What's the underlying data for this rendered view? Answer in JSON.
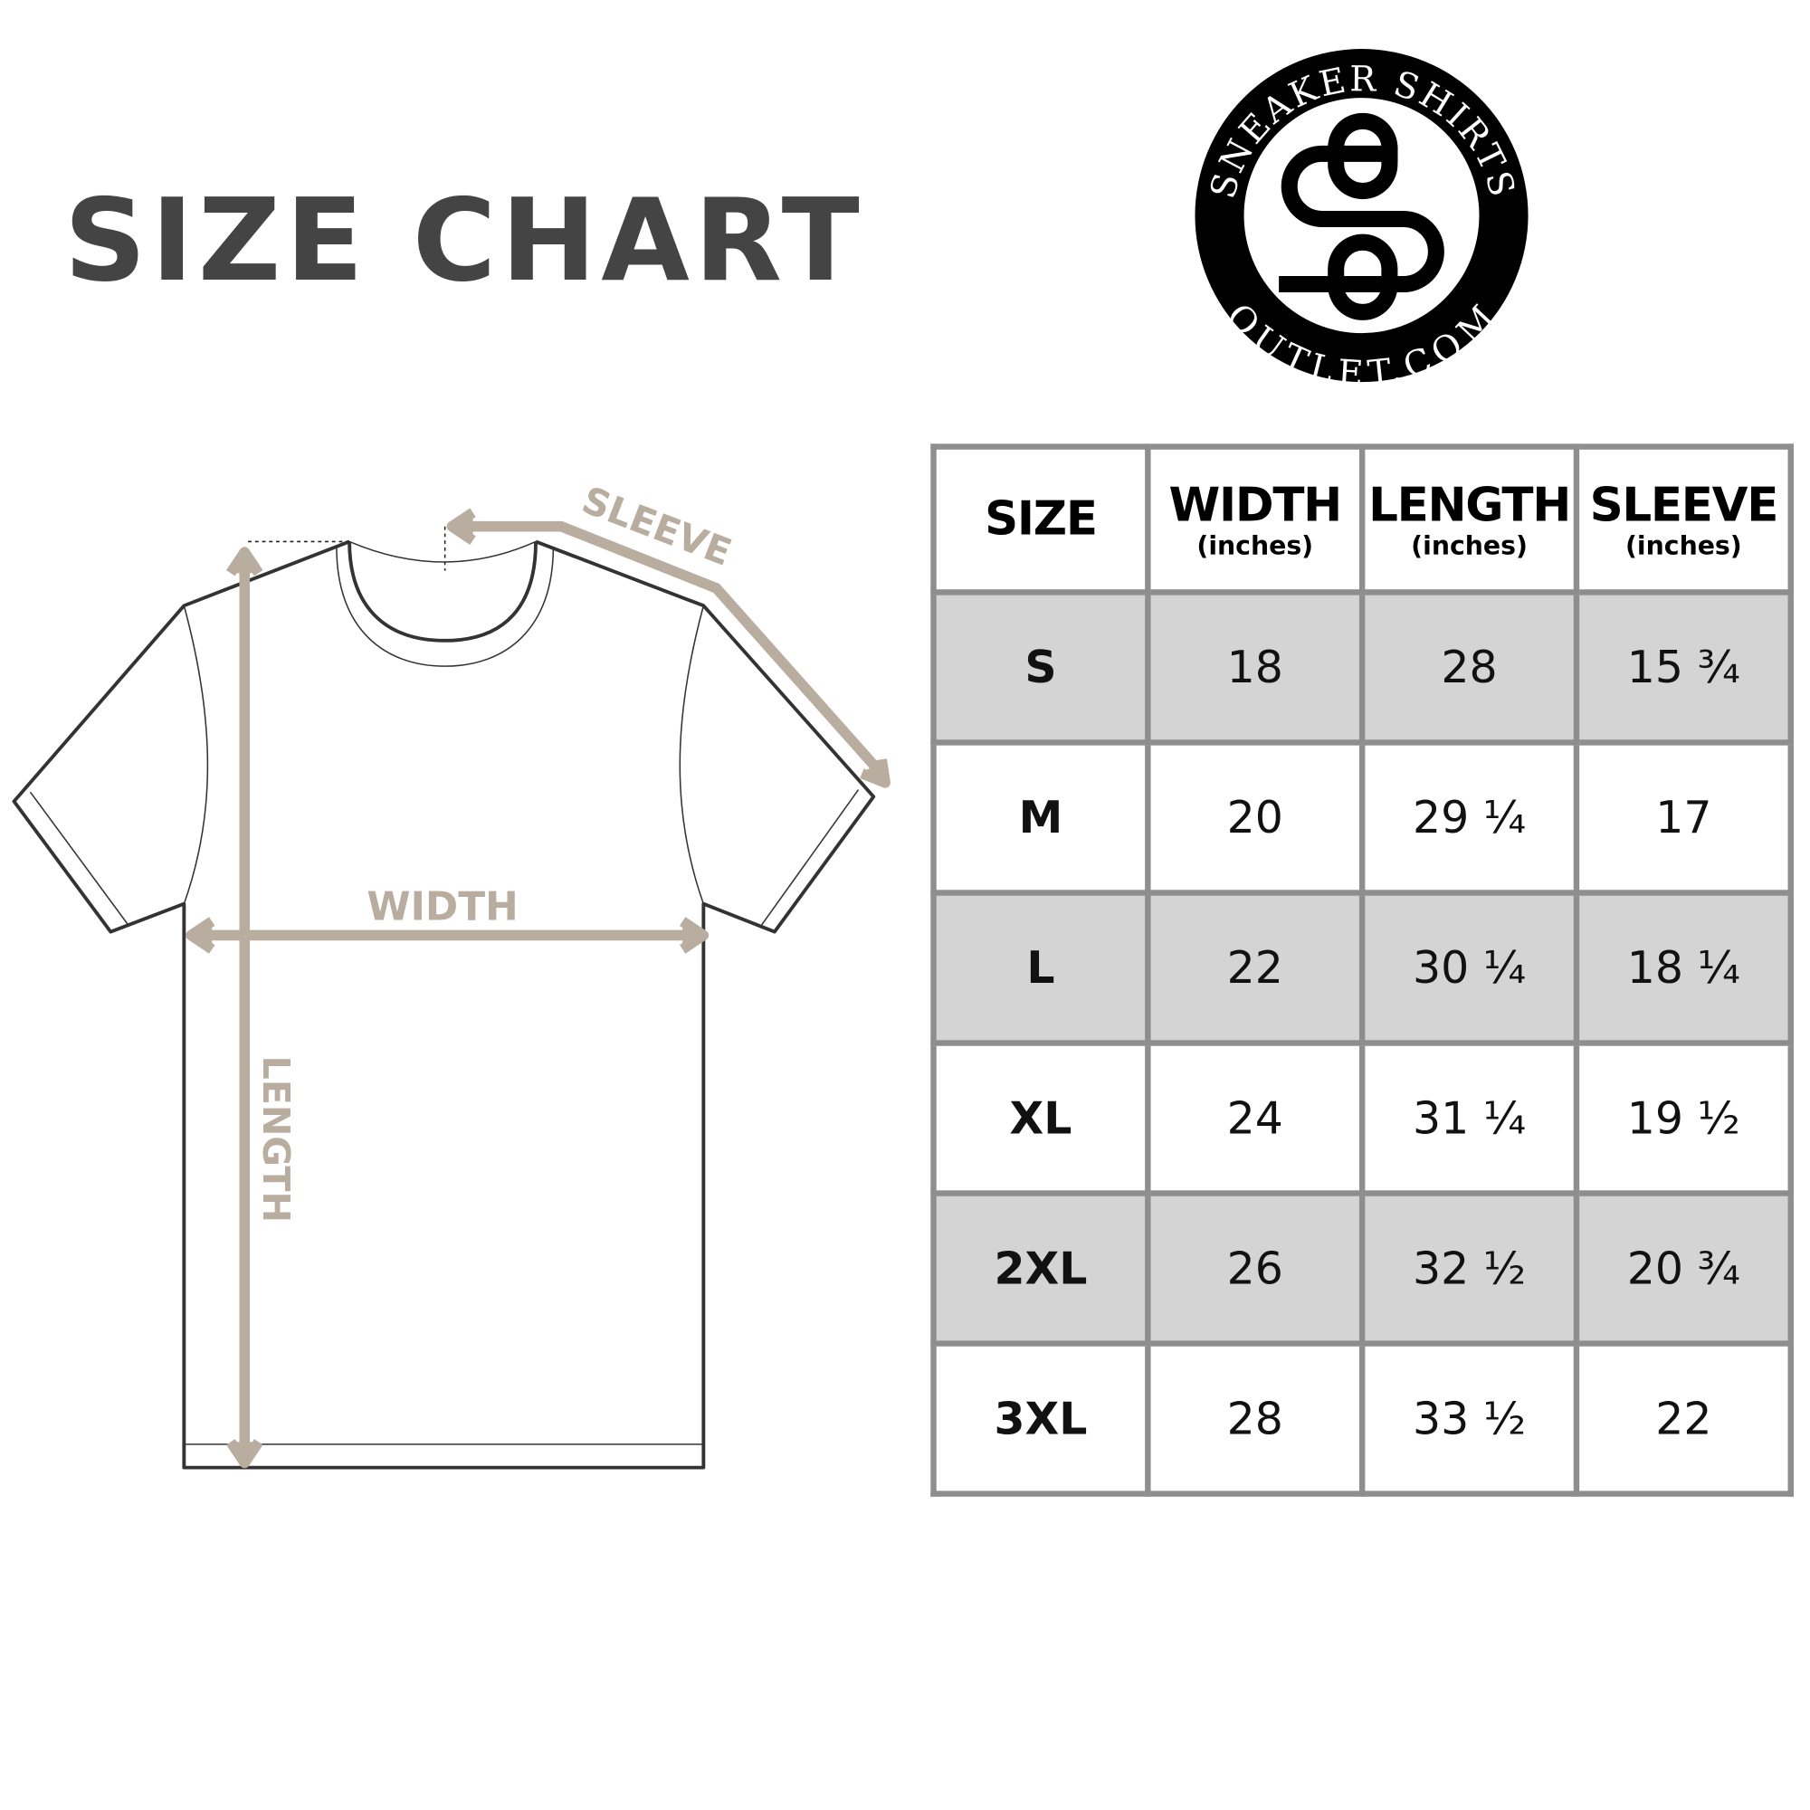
{
  "title": "SIZE CHART",
  "logo": {
    "top_text": "SNEAKER SHIRTS",
    "bottom_text": "OUTLET.COM",
    "monogram": "SO"
  },
  "diagram": {
    "sleeve_label": "SLEEVE",
    "width_label": "WIDTH",
    "length_label": "LENGTH",
    "arrow_color": "#b8ad9e"
  },
  "table": {
    "headers": [
      {
        "label": "SIZE",
        "unit": ""
      },
      {
        "label": "WIDTH",
        "unit": "(inches)"
      },
      {
        "label": "LENGTH",
        "unit": "(inches)"
      },
      {
        "label": "SLEEVE",
        "unit": "(inches)"
      }
    ],
    "rows": [
      [
        "S",
        "18",
        "28",
        "15 ¾"
      ],
      [
        "M",
        "20",
        "29 ¼",
        "17"
      ],
      [
        "L",
        "22",
        "30 ¼",
        "18 ¼"
      ],
      [
        "XL",
        "24",
        "31 ¼",
        "19 ½"
      ],
      [
        "2XL",
        "26",
        "32 ½",
        "20 ¾"
      ],
      [
        "3XL",
        "28",
        "33 ½",
        "22"
      ]
    ],
    "shade_color": "#d4d4d4",
    "border_color": "#8e8e8e"
  }
}
